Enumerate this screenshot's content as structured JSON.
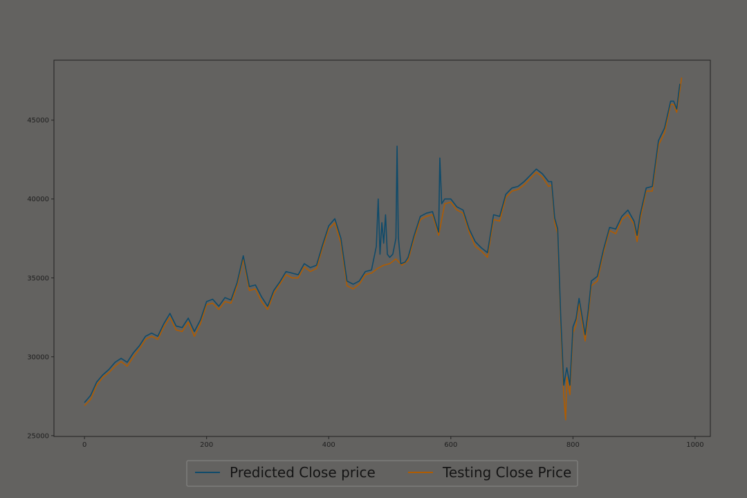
{
  "chart_data": {
    "type": "line",
    "title": "",
    "xlabel": "",
    "ylabel": "",
    "xlim": [
      -50,
      1025
    ],
    "ylim": [
      24950,
      48800
    ],
    "xticks": [
      0,
      200,
      400,
      600,
      800,
      1000
    ],
    "yticks": [
      25000,
      30000,
      35000,
      40000,
      45000
    ],
    "grid": false,
    "legend_position": "bottom-center",
    "series": [
      {
        "name": "Predicted Close price",
        "color": "#0e4a6a",
        "points": [
          [
            0,
            27100
          ],
          [
            10,
            27550
          ],
          [
            20,
            28400
          ],
          [
            30,
            28850
          ],
          [
            40,
            29200
          ],
          [
            50,
            29650
          ],
          [
            60,
            29900
          ],
          [
            70,
            29650
          ],
          [
            80,
            30250
          ],
          [
            90,
            30700
          ],
          [
            100,
            31300
          ],
          [
            110,
            31500
          ],
          [
            120,
            31300
          ],
          [
            130,
            32100
          ],
          [
            140,
            32750
          ],
          [
            150,
            31950
          ],
          [
            160,
            31850
          ],
          [
            170,
            32450
          ],
          [
            180,
            31600
          ],
          [
            190,
            32350
          ],
          [
            200,
            33500
          ],
          [
            210,
            33650
          ],
          [
            220,
            33200
          ],
          [
            230,
            33750
          ],
          [
            240,
            33600
          ],
          [
            250,
            34700
          ],
          [
            260,
            36400
          ],
          [
            270,
            34450
          ],
          [
            280,
            34550
          ],
          [
            290,
            33800
          ],
          [
            300,
            33200
          ],
          [
            310,
            34200
          ],
          [
            320,
            34750
          ],
          [
            330,
            35400
          ],
          [
            340,
            35300
          ],
          [
            350,
            35200
          ],
          [
            360,
            35900
          ],
          [
            370,
            35650
          ],
          [
            380,
            35800
          ],
          [
            390,
            37100
          ],
          [
            400,
            38300
          ],
          [
            410,
            38750
          ],
          [
            420,
            37500
          ],
          [
            430,
            34800
          ],
          [
            440,
            34600
          ],
          [
            450,
            34800
          ],
          [
            460,
            35400
          ],
          [
            470,
            35500
          ],
          [
            478,
            37000
          ],
          [
            481,
            40000
          ],
          [
            484,
            36500
          ],
          [
            487,
            38500
          ],
          [
            490,
            37200
          ],
          [
            493,
            39000
          ],
          [
            496,
            36500
          ],
          [
            500,
            36300
          ],
          [
            505,
            36500
          ],
          [
            510,
            37500
          ],
          [
            512,
            43350
          ],
          [
            514,
            37600
          ],
          [
            518,
            35900
          ],
          [
            525,
            36000
          ],
          [
            530,
            36300
          ],
          [
            540,
            37700
          ],
          [
            550,
            38900
          ],
          [
            560,
            39100
          ],
          [
            570,
            39200
          ],
          [
            580,
            37900
          ],
          [
            582,
            42600
          ],
          [
            585,
            39700
          ],
          [
            590,
            40000
          ],
          [
            600,
            40000
          ],
          [
            610,
            39500
          ],
          [
            620,
            39300
          ],
          [
            630,
            38100
          ],
          [
            640,
            37300
          ],
          [
            650,
            36900
          ],
          [
            660,
            36600
          ],
          [
            670,
            39000
          ],
          [
            680,
            38900
          ],
          [
            690,
            40300
          ],
          [
            700,
            40700
          ],
          [
            710,
            40800
          ],
          [
            720,
            41100
          ],
          [
            730,
            41500
          ],
          [
            740,
            41900
          ],
          [
            750,
            41600
          ],
          [
            760,
            41100
          ],
          [
            765,
            41100
          ],
          [
            770,
            38800
          ],
          [
            775,
            38100
          ],
          [
            780,
            32500
          ],
          [
            785,
            28200
          ],
          [
            790,
            29300
          ],
          [
            795,
            28200
          ],
          [
            800,
            31900
          ],
          [
            805,
            32400
          ],
          [
            810,
            33700
          ],
          [
            820,
            31400
          ],
          [
            825,
            32900
          ],
          [
            830,
            34800
          ],
          [
            840,
            35100
          ],
          [
            850,
            36800
          ],
          [
            860,
            38200
          ],
          [
            870,
            38100
          ],
          [
            880,
            38900
          ],
          [
            890,
            39300
          ],
          [
            900,
            38600
          ],
          [
            905,
            37700
          ],
          [
            910,
            39000
          ],
          [
            920,
            40700
          ],
          [
            930,
            40800
          ],
          [
            940,
            43700
          ],
          [
            950,
            44500
          ],
          [
            960,
            46200
          ],
          [
            965,
            46200
          ],
          [
            970,
            45700
          ],
          [
            975,
            47300
          ]
        ]
      },
      {
        "name": "Testing Close Price",
        "color": "#b05c00",
        "points": [
          [
            0,
            26900
          ],
          [
            10,
            27300
          ],
          [
            20,
            28200
          ],
          [
            30,
            28700
          ],
          [
            40,
            29000
          ],
          [
            50,
            29400
          ],
          [
            60,
            29700
          ],
          [
            70,
            29400
          ],
          [
            80,
            30000
          ],
          [
            90,
            30500
          ],
          [
            100,
            31100
          ],
          [
            110,
            31300
          ],
          [
            120,
            31100
          ],
          [
            130,
            31900
          ],
          [
            140,
            32500
          ],
          [
            150,
            31700
          ],
          [
            160,
            31600
          ],
          [
            170,
            32200
          ],
          [
            180,
            31300
          ],
          [
            190,
            32100
          ],
          [
            200,
            33300
          ],
          [
            210,
            33400
          ],
          [
            220,
            33000
          ],
          [
            230,
            33500
          ],
          [
            240,
            33400
          ],
          [
            250,
            34500
          ],
          [
            260,
            36200
          ],
          [
            270,
            34200
          ],
          [
            280,
            34300
          ],
          [
            290,
            33500
          ],
          [
            300,
            33000
          ],
          [
            310,
            34000
          ],
          [
            320,
            34600
          ],
          [
            330,
            35200
          ],
          [
            340,
            35000
          ],
          [
            350,
            35000
          ],
          [
            360,
            35700
          ],
          [
            370,
            35400
          ],
          [
            380,
            35600
          ],
          [
            390,
            36900
          ],
          [
            400,
            38100
          ],
          [
            410,
            38500
          ],
          [
            420,
            37200
          ],
          [
            430,
            34500
          ],
          [
            440,
            34300
          ],
          [
            450,
            34600
          ],
          [
            460,
            35200
          ],
          [
            470,
            35300
          ],
          [
            480,
            35600
          ],
          [
            490,
            35800
          ],
          [
            500,
            35900
          ],
          [
            510,
            36200
          ],
          [
            520,
            35800
          ],
          [
            530,
            36100
          ],
          [
            540,
            37500
          ],
          [
            550,
            38700
          ],
          [
            560,
            38900
          ],
          [
            570,
            39000
          ],
          [
            580,
            37700
          ],
          [
            590,
            39700
          ],
          [
            600,
            39800
          ],
          [
            610,
            39300
          ],
          [
            620,
            39100
          ],
          [
            630,
            37900
          ],
          [
            640,
            37000
          ],
          [
            650,
            36700
          ],
          [
            660,
            36300
          ],
          [
            670,
            38700
          ],
          [
            680,
            38600
          ],
          [
            690,
            40100
          ],
          [
            700,
            40500
          ],
          [
            710,
            40600
          ],
          [
            720,
            40900
          ],
          [
            730,
            41300
          ],
          [
            740,
            41700
          ],
          [
            750,
            41400
          ],
          [
            760,
            40800
          ],
          [
            765,
            40900
          ],
          [
            770,
            38500
          ],
          [
            775,
            37800
          ],
          [
            780,
            32000
          ],
          [
            785,
            27500
          ],
          [
            788,
            26000
          ],
          [
            790,
            28700
          ],
          [
            795,
            27600
          ],
          [
            800,
            31500
          ],
          [
            805,
            32000
          ],
          [
            810,
            33400
          ],
          [
            820,
            31000
          ],
          [
            825,
            32500
          ],
          [
            830,
            34500
          ],
          [
            840,
            34800
          ],
          [
            850,
            36600
          ],
          [
            860,
            38000
          ],
          [
            870,
            37800
          ],
          [
            880,
            38700
          ],
          [
            890,
            39000
          ],
          [
            900,
            38400
          ],
          [
            905,
            37300
          ],
          [
            910,
            38700
          ],
          [
            920,
            40500
          ],
          [
            930,
            40500
          ],
          [
            940,
            43400
          ],
          [
            950,
            44200
          ],
          [
            960,
            46000
          ],
          [
            965,
            46000
          ],
          [
            970,
            45500
          ],
          [
            978,
            47700
          ]
        ]
      }
    ]
  }
}
